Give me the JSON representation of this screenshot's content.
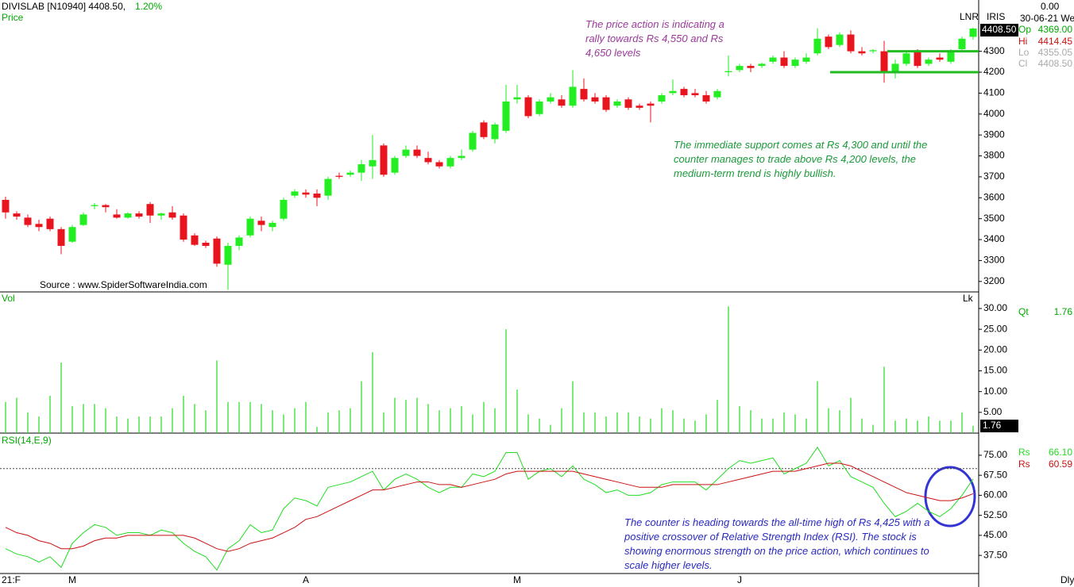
{
  "header": {
    "title": "DIVISLAB [N10940] 4408.50,",
    "change": "1.20%",
    "lnr": "LNR",
    "iris": "IRIS",
    "top_value": "0.00",
    "date": "30-06-21 We",
    "source": "Source : www.SpiderSoftwareIndia.com",
    "period": "Dly"
  },
  "info_panel": {
    "open_label": "Op",
    "open": "4369.00",
    "high_label": "Hi",
    "high": "4414.45",
    "low_label": "Lo",
    "low": "4355.05",
    "close_label": "Cl",
    "close": "4408.50"
  },
  "annotations": [
    "The price action is indicating a rally towards Rs 4,550 and Rs 4,650 levels",
    "The immediate support comes at Rs 4,300 and until the counter manages to trade above Rs 4,200 levels, the medium-term trend is highly bullish.",
    "The counter is heading towards the all-time high of Rs 4,425 with a positive crossover of Relative Strength Index (RSI). The stock is showing enormous strength on the price action, which continues to scale higher levels."
  ],
  "chart_data": [
    {
      "type": "candlestick",
      "title": "Price",
      "categories": [
        "21:F",
        null,
        null,
        null,
        null,
        null,
        "M",
        null,
        null,
        null,
        null,
        null,
        null,
        null,
        null,
        null,
        null,
        null,
        null,
        null,
        null,
        null,
        null,
        null,
        null,
        null,
        null,
        "A",
        null,
        null,
        null,
        null,
        null,
        null,
        null,
        null,
        null,
        null,
        null,
        null,
        null,
        null,
        null,
        null,
        null,
        null,
        "M",
        null,
        null,
        null,
        null,
        null,
        null,
        null,
        null,
        null,
        null,
        null,
        null,
        null,
        null,
        null,
        null,
        null,
        null,
        null,
        "J",
        null,
        null,
        null,
        null,
        null,
        null,
        null,
        null,
        null,
        null,
        null,
        null,
        null,
        null,
        null,
        null,
        null,
        null,
        null,
        null,
        null
      ],
      "open": [
        3590,
        3525,
        3505,
        3475,
        3500,
        3450,
        3390,
        3470,
        3560,
        3565,
        3520,
        3505,
        3525,
        3570,
        3515,
        3530,
        3515,
        3420,
        3385,
        3405,
        3280,
        3370,
        3420,
        3490,
        3460,
        3500,
        3610,
        3625,
        3620,
        3610,
        3705,
        3710,
        3720,
        3750,
        3850,
        3720,
        3800,
        3830,
        3790,
        3770,
        3750,
        3790,
        3830,
        3960,
        3880,
        3920,
        4070,
        4080,
        4000,
        4060,
        4070,
        4040,
        4120,
        4080,
        4080,
        4040,
        4070,
        4040,
        4050,
        4060,
        4100,
        4120,
        4100,
        4090,
        4080,
        4200,
        4210,
        4230,
        4230,
        4250,
        4270,
        4230,
        4250,
        4290,
        4370,
        4330,
        4380,
        4300,
        4300,
        4300,
        4200,
        4240,
        4300,
        4240,
        4270,
        4250,
        4310,
        4369
      ],
      "high": [
        3605,
        3535,
        3520,
        3495,
        3510,
        3460,
        3470,
        3530,
        3575,
        3570,
        3545,
        3530,
        3535,
        3580,
        3530,
        3560,
        3525,
        3430,
        3395,
        3415,
        3385,
        3420,
        3510,
        3510,
        3490,
        3600,
        3640,
        3640,
        3640,
        3700,
        3720,
        3730,
        3780,
        3900,
        3860,
        3800,
        3850,
        3850,
        3820,
        3780,
        3800,
        3830,
        3920,
        3970,
        3960,
        4140,
        4140,
        4090,
        4070,
        4100,
        4090,
        4210,
        4170,
        4100,
        4090,
        4070,
        4080,
        4050,
        4060,
        4100,
        4165,
        4130,
        4120,
        4110,
        4120,
        4280,
        4240,
        4240,
        4245,
        4280,
        4300,
        4270,
        4290,
        4410,
        4380,
        4390,
        4400,
        4320,
        4310,
        4350,
        4260,
        4300,
        4310,
        4270,
        4290,
        4310,
        4370,
        4414.45
      ],
      "low": [
        3500,
        3495,
        3460,
        3440,
        3440,
        3330,
        3385,
        3465,
        3545,
        3530,
        3500,
        3500,
        3500,
        3480,
        3495,
        3495,
        3390,
        3370,
        3360,
        3270,
        3160,
        3350,
        3410,
        3440,
        3440,
        3490,
        3600,
        3600,
        3560,
        3590,
        3690,
        3700,
        3680,
        3690,
        3700,
        3710,
        3790,
        3790,
        3760,
        3740,
        3740,
        3780,
        3820,
        3880,
        3860,
        3910,
        4050,
        3980,
        3990,
        4050,
        4030,
        4030,
        4060,
        4050,
        4010,
        4030,
        4020,
        4020,
        3960,
        4050,
        4090,
        4080,
        4080,
        4050,
        4070,
        4180,
        4200,
        4200,
        4220,
        4240,
        4220,
        4220,
        4240,
        4280,
        4310,
        4320,
        4290,
        4280,
        4290,
        4150,
        4170,
        4230,
        4220,
        4230,
        4250,
        4240,
        4300,
        4355.05
      ],
      "close": [
        3530,
        3510,
        3470,
        3460,
        3450,
        3370,
        3460,
        3520,
        3565,
        3555,
        3505,
        3525,
        3510,
        3515,
        3525,
        3505,
        3400,
        3375,
        3370,
        3285,
        3370,
        3410,
        3500,
        3470,
        3480,
        3590,
        3630,
        3615,
        3600,
        3690,
        3700,
        3720,
        3760,
        3780,
        3710,
        3790,
        3830,
        3800,
        3770,
        3750,
        3790,
        3800,
        3910,
        3890,
        3950,
        4060,
        4080,
        3990,
        4060,
        4080,
        4040,
        4130,
        4070,
        4060,
        4020,
        4060,
        4030,
        4030,
        4040,
        4090,
        4110,
        4090,
        4090,
        4060,
        4110,
        4205,
        4230,
        4220,
        4240,
        4270,
        4230,
        4260,
        4270,
        4360,
        4320,
        4380,
        4300,
        4290,
        4305,
        4200,
        4240,
        4290,
        4230,
        4260,
        4260,
        4300,
        4360,
        4408.5
      ],
      "up_color": "#22ee22",
      "down_color": "#e8141e",
      "support_levels": [
        4300,
        4200
      ],
      "support_color": "#22bb22",
      "ylim": [
        3150,
        4545
      ],
      "yticks": [
        3200,
        3300,
        3400,
        3500,
        3600,
        3700,
        3800,
        3900,
        4000,
        4100,
        4200,
        4300
      ]
    },
    {
      "type": "bar",
      "title": "Vol",
      "unit": "Lk",
      "last_label": "Qt",
      "last_value_label": "1.76",
      "color": "#22dd22",
      "values": [
        7.5,
        8.5,
        5,
        4,
        9,
        17,
        6.5,
        7,
        7,
        6,
        4,
        3.5,
        4,
        4,
        4,
        6,
        9,
        7,
        5.5,
        17.5,
        7.5,
        7.5,
        7.5,
        7,
        5.5,
        4.5,
        6,
        7.5,
        1.5,
        5,
        5.5,
        6,
        12.5,
        19.5,
        5,
        8.5,
        8,
        8.5,
        7,
        5.5,
        6,
        6.5,
        4.5,
        7.5,
        6,
        25,
        10.5,
        4.5,
        3.5,
        2,
        6,
        12.5,
        5,
        5,
        4,
        5,
        5,
        4,
        3.5,
        6,
        5.5,
        3.5,
        3,
        4.5,
        8,
        30.5,
        6.5,
        5.5,
        3.5,
        3.5,
        5,
        4.5,
        3.5,
        12.5,
        6,
        5.5,
        8.5,
        3.5,
        2,
        16,
        3,
        3.5,
        3,
        4,
        3,
        3,
        5,
        1.76
      ],
      "ylim": [
        0,
        34
      ],
      "yticks": [
        {
          "value": 5,
          "label": "5.00"
        },
        {
          "value": 10,
          "label": "10.00"
        },
        {
          "value": 15,
          "label": "15.00"
        },
        {
          "value": 20,
          "label": "20.00"
        },
        {
          "value": 25,
          "label": "25.00"
        },
        {
          "value": 30,
          "label": "30.00"
        }
      ]
    },
    {
      "type": "line",
      "title": "RSI(14,E,9)",
      "reference_line": 70,
      "series": [
        {
          "name": "Rs",
          "color": "#22dd22",
          "last_value_label": "66.10",
          "values": [
            40,
            38,
            37,
            35,
            37,
            33,
            42,
            46,
            49,
            48,
            45,
            46,
            46,
            45,
            47,
            46,
            42,
            39,
            37,
            32,
            40,
            43,
            49,
            46,
            47,
            55,
            59,
            58,
            56,
            63,
            64,
            65,
            67,
            69,
            62,
            66,
            68,
            66,
            63,
            61,
            63,
            63,
            68,
            67,
            69,
            76,
            76,
            66,
            69,
            70,
            67,
            71,
            66,
            64,
            61,
            62,
            60,
            60,
            61,
            64,
            65,
            65,
            65,
            62,
            66,
            70,
            73,
            72,
            73,
            74,
            68,
            70,
            72,
            78,
            71,
            73,
            67,
            65,
            63,
            57,
            52,
            54,
            57,
            54,
            52,
            55,
            60,
            66.1
          ]
        },
        {
          "name": "Rs",
          "color": "#cc1111",
          "last_value_label": "60.59",
          "values": [
            48,
            46,
            45,
            43,
            42,
            40,
            40,
            41,
            43,
            44,
            44,
            45,
            45,
            45,
            45,
            45,
            45,
            44,
            42,
            40,
            39,
            40,
            42,
            43,
            44,
            46,
            48,
            51,
            52,
            54,
            56,
            58,
            60,
            62,
            62,
            63,
            64,
            65,
            65,
            64,
            64,
            63,
            64,
            65,
            66,
            68,
            69,
            69,
            69,
            69,
            69,
            69,
            68,
            67,
            66,
            65,
            64,
            63,
            63,
            63,
            64,
            64,
            64,
            64,
            64,
            65,
            66,
            67,
            68,
            69,
            69,
            69,
            70,
            71,
            72,
            72,
            71,
            69,
            67,
            65,
            63,
            61,
            60,
            59,
            58,
            58,
            59,
            60.59
          ]
        }
      ],
      "ylim": [
        31,
        82.7
      ],
      "yticks": [
        {
          "value": 37.5,
          "label": "37.50"
        },
        {
          "value": 45,
          "label": "45.00"
        },
        {
          "value": 52.5,
          "label": "52.50"
        },
        {
          "value": 60,
          "label": "60.00"
        },
        {
          "value": 67.5,
          "label": "67.50"
        },
        {
          "value": 75,
          "label": "75.00"
        }
      ]
    }
  ]
}
